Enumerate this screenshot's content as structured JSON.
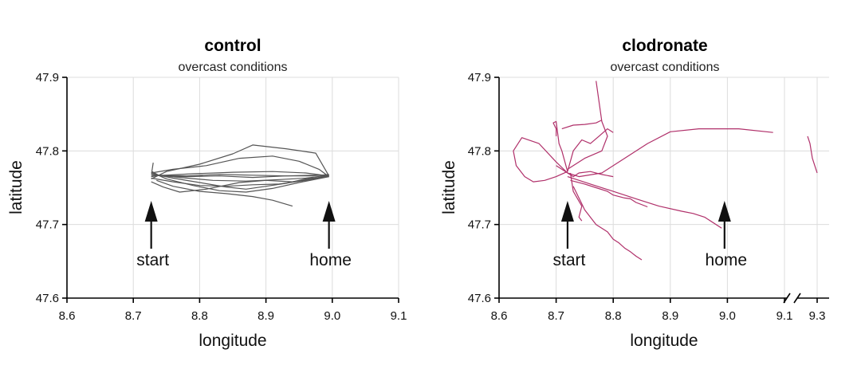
{
  "chart_data": [
    {
      "type": "line",
      "title": "control",
      "subtitle": "overcast conditions",
      "xlabel": "longitude",
      "ylabel": "latitude",
      "xlim": [
        8.6,
        9.1
      ],
      "ylim": [
        47.6,
        47.9
      ],
      "xticks": [
        "8.6",
        "8.7",
        "8.8",
        "8.9",
        "9.0",
        "9.1"
      ],
      "yticks": [
        "47.6",
        "47.7",
        "47.8",
        "47.9"
      ],
      "grid": true,
      "color": "#555555",
      "annotations": [
        {
          "label": "start",
          "x": 8.727,
          "y": 47.71
        },
        {
          "label": "home",
          "x": 8.995,
          "y": 47.71
        }
      ],
      "series": [
        {
          "x": [
            8.727,
            8.74,
            8.78,
            8.83,
            8.88,
            8.93,
            8.97,
            8.995
          ],
          "y": [
            47.765,
            47.767,
            47.766,
            47.768,
            47.767,
            47.766,
            47.767,
            47.767
          ]
        },
        {
          "x": [
            8.727,
            8.75,
            8.8,
            8.85,
            8.88,
            8.93,
            8.975,
            8.995
          ],
          "y": [
            47.762,
            47.772,
            47.782,
            47.796,
            47.808,
            47.803,
            47.797,
            47.766
          ]
        },
        {
          "x": [
            8.727,
            8.76,
            8.81,
            8.86,
            8.91,
            8.95,
            8.98,
            8.995
          ],
          "y": [
            47.77,
            47.775,
            47.78,
            47.79,
            47.793,
            47.786,
            47.775,
            47.765
          ]
        },
        {
          "x": [
            8.727,
            8.745,
            8.77,
            8.81,
            8.86,
            8.9,
            8.94,
            8.97,
            8.995
          ],
          "y": [
            47.758,
            47.751,
            47.744,
            47.748,
            47.757,
            47.76,
            47.758,
            47.762,
            47.767
          ]
        },
        {
          "x": [
            8.727,
            8.75,
            8.79,
            8.83,
            8.87,
            8.91,
            8.95,
            8.995
          ],
          "y": [
            47.771,
            47.762,
            47.753,
            47.746,
            47.744,
            47.749,
            47.757,
            47.765
          ]
        },
        {
          "x": [
            8.727,
            8.76,
            8.8,
            8.84,
            8.88,
            8.92,
            8.96,
            8.995
          ],
          "y": [
            47.763,
            47.758,
            47.753,
            47.752,
            47.754,
            47.755,
            47.76,
            47.766
          ]
        },
        {
          "x": [
            8.735,
            8.76,
            8.8,
            8.84,
            8.88,
            8.91,
            8.94
          ],
          "y": [
            47.76,
            47.752,
            47.745,
            47.742,
            47.738,
            47.733,
            47.725
          ]
        },
        {
          "x": [
            8.727,
            8.77,
            8.82,
            8.87,
            8.92,
            8.96,
            8.995
          ],
          "y": [
            47.768,
            47.764,
            47.76,
            47.759,
            47.761,
            47.763,
            47.767
          ]
        },
        {
          "x": [
            8.73,
            8.728,
            8.74,
            8.78,
            8.83,
            8.88,
            8.93,
            8.97,
            8.995
          ],
          "y": [
            47.784,
            47.772,
            47.766,
            47.765,
            47.766,
            47.764,
            47.766,
            47.766,
            47.768
          ]
        },
        {
          "x": [
            8.727,
            8.76,
            8.8,
            8.84,
            8.87,
            8.9,
            8.93,
            8.96,
            8.995
          ],
          "y": [
            47.769,
            47.763,
            47.757,
            47.751,
            47.748,
            47.752,
            47.756,
            47.762,
            47.765
          ]
        },
        {
          "x": [
            8.727,
            8.79,
            8.85,
            8.91,
            8.96,
            8.995
          ],
          "y": [
            47.766,
            47.769,
            47.771,
            47.772,
            47.77,
            47.766
          ]
        }
      ]
    },
    {
      "type": "line",
      "title": "clodronate",
      "subtitle": "overcast conditions",
      "xlabel": "longitude",
      "ylabel": "latitude",
      "xlim": [
        8.6,
        9.3
      ],
      "ylim": [
        47.6,
        47.9
      ],
      "xticks": [
        "8.6",
        "8.7",
        "8.8",
        "8.9",
        "9.0",
        "9.1",
        "9.3"
      ],
      "yticks": [
        "47.6",
        "47.7",
        "47.8",
        "47.9"
      ],
      "x_axis_break": [
        9.1,
        9.3
      ],
      "grid": true,
      "color": "#b0306a",
      "annotations": [
        {
          "label": "start",
          "x": 8.72,
          "y": 47.71
        },
        {
          "label": "home",
          "x": 8.995,
          "y": 47.71
        }
      ],
      "series": [
        {
          "x": [
            8.72,
            8.7,
            8.67,
            8.64,
            8.625,
            8.63,
            8.645,
            8.66,
            8.68,
            8.7,
            8.72
          ],
          "y": [
            47.77,
            47.785,
            47.81,
            47.818,
            47.8,
            47.78,
            47.765,
            47.758,
            47.76,
            47.765,
            47.772
          ]
        },
        {
          "x": [
            8.72,
            8.71,
            8.705,
            8.7,
            8.695,
            8.7,
            8.7
          ],
          "y": [
            47.772,
            47.8,
            47.81,
            47.84,
            47.838,
            47.83,
            47.82
          ]
        },
        {
          "x": [
            8.72,
            8.75,
            8.78,
            8.79,
            8.78,
            8.77
          ],
          "y": [
            47.775,
            47.79,
            47.8,
            47.82,
            47.84,
            47.895
          ]
        },
        {
          "x": [
            8.71,
            8.73,
            8.75,
            8.77,
            8.78
          ],
          "y": [
            47.83,
            47.835,
            47.836,
            47.838,
            47.842
          ]
        },
        {
          "x": [
            8.72,
            8.74,
            8.78,
            8.82,
            8.86,
            8.9,
            8.95,
            9.02,
            9.08
          ],
          "y": [
            47.77,
            47.765,
            47.77,
            47.79,
            47.81,
            47.826,
            47.83,
            47.83,
            47.825
          ]
        },
        {
          "x": [
            8.725,
            8.73,
            8.745,
            8.74,
            8.745
          ],
          "y": [
            47.77,
            47.745,
            47.725,
            47.71,
            47.705
          ]
        },
        {
          "x": [
            8.725,
            8.75,
            8.77,
            8.79,
            8.8,
            8.81,
            8.82,
            8.83,
            8.84,
            8.86
          ],
          "y": [
            47.76,
            47.755,
            47.75,
            47.745,
            47.74,
            47.738,
            47.736,
            47.735,
            47.73,
            47.724
          ]
        },
        {
          "x": [
            8.73,
            8.75,
            8.77,
            8.79,
            8.8,
            8.81,
            8.82,
            8.83,
            8.84,
            8.85
          ],
          "y": [
            47.752,
            47.72,
            47.7,
            47.69,
            47.68,
            47.675,
            47.668,
            47.663,
            47.657,
            47.652
          ]
        },
        {
          "x": [
            8.72,
            8.76,
            8.8,
            8.84,
            8.88,
            8.92,
            8.94,
            8.96,
            8.99
          ],
          "y": [
            47.765,
            47.755,
            47.745,
            47.735,
            47.725,
            47.718,
            47.715,
            47.71,
            47.695
          ]
        },
        {
          "x": [
            8.7,
            8.71,
            8.72,
            8.73,
            8.74,
            8.76,
            8.78,
            8.8
          ],
          "y": [
            47.78,
            47.775,
            47.77,
            47.765,
            47.77,
            47.772,
            47.768,
            47.765
          ]
        },
        {
          "x": [
            8.72,
            8.73,
            8.745,
            8.76,
            8.775,
            8.79,
            8.8
          ],
          "y": [
            47.772,
            47.8,
            47.815,
            47.81,
            47.82,
            47.83,
            47.825
          ]
        },
        {
          "x": [
            9.26,
            9.27,
            9.28,
            9.29,
            9.3
          ],
          "y": [
            47.82,
            47.81,
            47.79,
            47.78,
            47.77
          ]
        }
      ]
    }
  ]
}
